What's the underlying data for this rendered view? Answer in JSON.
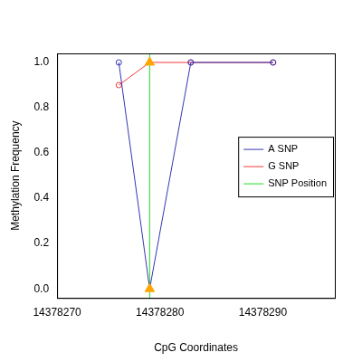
{
  "chart_data": {
    "type": "line",
    "x_label": "CpG Coordinates",
    "y_label": "Methylation Frequency",
    "x": [
      14378276,
      14378279,
      14378283,
      14378291
    ],
    "series": [
      {
        "name": "A SNP",
        "color": "#3535B5",
        "marker": "open_circle",
        "values": [
          1.0,
          0.0,
          1.0,
          1.0
        ]
      },
      {
        "name": "G SNP",
        "color": "#F03A3A",
        "marker": "open_circle",
        "values": [
          0.9,
          1.0,
          1.0,
          1.0
        ]
      }
    ],
    "snp_position": {
      "name": "SNP Position",
      "color": "#22DD22",
      "x": 14378279,
      "marker_color": "#FFA500"
    },
    "xlim": [
      14378270,
      14378297
    ],
    "xticks": [
      14378270,
      14378280,
      14378290
    ],
    "ylim": [
      -0.04,
      1.04
    ],
    "yticks": [
      {
        "value": 0,
        "label": "0.0"
      },
      {
        "value": 0.2,
        "label": "0.2"
      },
      {
        "value": 0.4,
        "label": "0.4"
      },
      {
        "value": 0.6,
        "label": "0.6"
      },
      {
        "value": 0.8,
        "label": "0.8"
      },
      {
        "value": 1,
        "label": "1.0"
      }
    ],
    "grid": false,
    "legend": "right"
  }
}
